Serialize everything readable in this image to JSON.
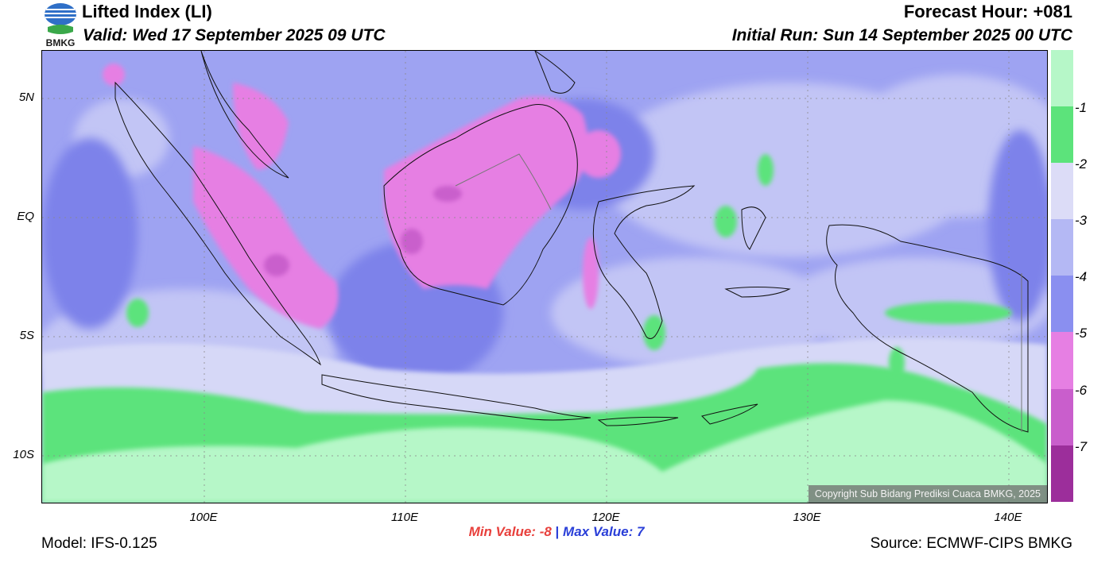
{
  "header": {
    "title": "Lifted Index (LI)",
    "valid": "Valid: Wed 17 September 2025 09 UTC",
    "forecast_hour": "Forecast Hour: +081",
    "initial_run": "Initial Run: Sun 14 September 2025 00 UTC"
  },
  "logo": {
    "text": "BMKG"
  },
  "axes": {
    "lat_ticks": [
      "5N",
      "EQ",
      "5S",
      "10S"
    ],
    "lon_ticks": [
      "100E",
      "110E",
      "120E",
      "130E",
      "140E"
    ]
  },
  "colorbar": {
    "labels": [
      "-1",
      "-2",
      "-3",
      "-4",
      "-5",
      "-6",
      "-7"
    ],
    "colors": [
      "#b6f7c8",
      "#5ce37b",
      "#dcdcf7",
      "#b4b8f4",
      "#8a8ff0",
      "#e67fe3",
      "#c95ecc",
      "#9c2e9b"
    ]
  },
  "stats": {
    "min_label": "Min Value:",
    "min_value": "-8",
    "separator": "|",
    "max_label": "Max Value:",
    "max_value": "7"
  },
  "copyright": "Copyright Sub Bidang Prediksi Cuaca BMKG, 2025",
  "footer": {
    "model": "Model: IFS-0.125",
    "source": "Source: ECMWF-CIPS BMKG"
  }
}
